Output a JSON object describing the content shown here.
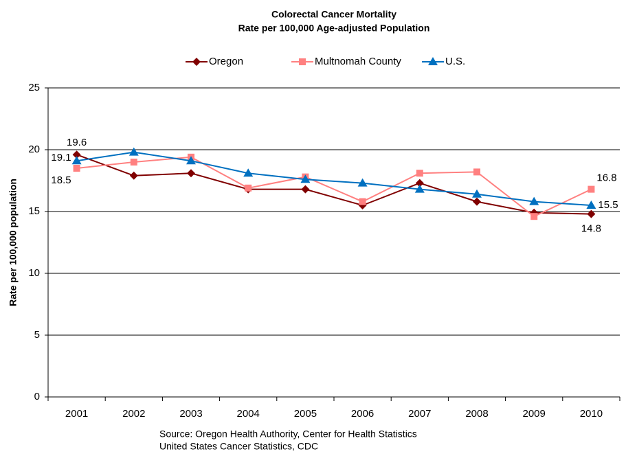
{
  "chart_data": {
    "type": "line",
    "title": [
      "Colorectal Cancer Mortality",
      "Rate per 100,000 Age-adjusted Population"
    ],
    "y_label": "Rate per 100,000 population",
    "categories": [
      "2001",
      "2002",
      "2003",
      "2004",
      "2005",
      "2006",
      "2007",
      "2008",
      "2009",
      "2010"
    ],
    "series": [
      {
        "name": "Oregon",
        "color": "#800000",
        "marker": "diamond",
        "values": [
          19.6,
          17.9,
          18.1,
          16.8,
          16.8,
          15.5,
          17.3,
          15.8,
          14.9,
          14.8
        ]
      },
      {
        "name": "Multnomah County",
        "color": "#ff8080",
        "marker": "square",
        "values": [
          18.5,
          19.0,
          19.4,
          16.9,
          17.8,
          15.8,
          18.1,
          18.2,
          14.6,
          16.8
        ]
      },
      {
        "name": "U.S.",
        "color": "#0070c0",
        "marker": "triangle",
        "values": [
          19.1,
          19.8,
          19.1,
          18.1,
          17.6,
          17.3,
          16.8,
          16.4,
          15.8,
          15.5
        ]
      }
    ],
    "ylim": [
      0,
      25
    ],
    "yticks": [
      0,
      5,
      10,
      15,
      20,
      25
    ],
    "grid": true,
    "legend": "top",
    "source": [
      "Source: Oregon Health Authority, Center for Health Statistics",
      "United States Cancer Statistics, CDC"
    ]
  }
}
